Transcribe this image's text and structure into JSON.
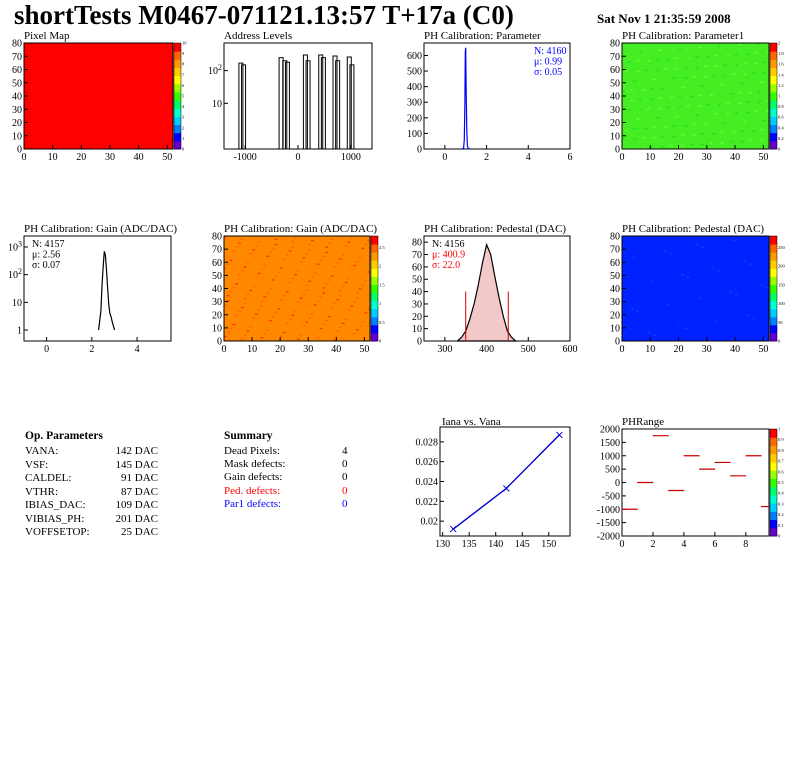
{
  "header": {
    "title": "shortTests M0467-071121.13:57 T+17a (C0)",
    "date": "Sat Nov  1 21:35:59 2008"
  },
  "palette_colors": [
    "#6600cc",
    "#0000ff",
    "#0080ff",
    "#00ccff",
    "#00ffcc",
    "#00ff66",
    "#33ff00",
    "#99ff00",
    "#ffff00",
    "#ffcc00",
    "#ff9900",
    "#ff6600",
    "#ff0000"
  ],
  "chart_data": [
    {
      "id": "pixel-map",
      "type": "heatmap",
      "title": "Pixel Map",
      "xlim": [
        0,
        52
      ],
      "ylim": [
        0,
        80
      ],
      "xticks": [
        "0",
        "10",
        "20",
        "30",
        "40",
        "50"
      ],
      "yticks": [
        "0",
        "10",
        "20",
        "30",
        "40",
        "50",
        "60",
        "70",
        "80"
      ],
      "fill": "#ff0000",
      "zticks": [
        "0",
        "1",
        "2",
        "3",
        "4",
        "5",
        "6",
        "7",
        "8",
        "9",
        "10"
      ],
      "zlim": [
        0,
        10
      ]
    },
    {
      "id": "address-levels",
      "type": "bar",
      "title": "Address Levels",
      "xlim": [
        -1400,
        1400
      ],
      "log_y": true,
      "xticks": [
        "-1000",
        "0",
        "1000"
      ],
      "yticks": [
        "10",
        "10^2"
      ],
      "peaks_x": [
        -1080,
        -1030,
        -320,
        -250,
        -200,
        140,
        190,
        430,
        480,
        700,
        750,
        970,
        1020
      ],
      "peaks_h": [
        170,
        150,
        250,
        200,
        180,
        300,
        200,
        300,
        250,
        280,
        200,
        260,
        150
      ]
    },
    {
      "id": "ph-parameter",
      "type": "line",
      "title": "PH Calibration: Parameter",
      "xlim": [
        -1,
        6
      ],
      "ylim": [
        0,
        680
      ],
      "xticks": [
        "0",
        "2",
        "4",
        "6"
      ],
      "yticks": [
        "0",
        "100",
        "200",
        "300",
        "400",
        "500",
        "600"
      ],
      "stats": [
        "N: 4160",
        "μ: 0.99",
        "σ: 0.05"
      ],
      "curve_x": [
        0.8,
        0.9,
        0.93,
        0.96,
        0.98,
        1.0,
        1.02,
        1.05,
        1.08,
        1.12,
        1.2
      ],
      "curve_y": [
        0,
        5,
        60,
        300,
        620,
        650,
        400,
        120,
        20,
        3,
        0
      ]
    },
    {
      "id": "ph-parameter1",
      "type": "heatmap",
      "title": "PH Calibration: Parameter1",
      "xlim": [
        0,
        52
      ],
      "ylim": [
        0,
        80
      ],
      "xticks": [
        "0",
        "10",
        "20",
        "30",
        "40",
        "50"
      ],
      "yticks": [
        "0",
        "10",
        "20",
        "30",
        "40",
        "50",
        "60",
        "70",
        "80"
      ],
      "fill": "#44ee22",
      "zticks": [
        "0",
        "0.2",
        "0.4",
        "0.6",
        "0.8",
        "1",
        "1.2",
        "1.4",
        "1.6",
        "1.8",
        "2"
      ],
      "zlim": [
        0,
        2
      ]
    },
    {
      "id": "ph-gain",
      "type": "line",
      "title": "PH Calibration: Gain (ADC/DAC)",
      "xlim": [
        -1,
        5.5
      ],
      "log_y": true,
      "xticks": [
        "0",
        "2",
        "4"
      ],
      "yticks": [
        "1",
        "10",
        "10^2",
        "10^3"
      ],
      "stats": [
        "N: 4157",
        "μ: 2.56",
        "σ: 0.07"
      ],
      "curve_x": [
        2.3,
        2.4,
        2.45,
        2.5,
        2.55,
        2.6,
        2.65,
        2.7,
        2.75,
        2.8,
        2.85,
        2.9,
        3.0
      ],
      "curve_y": [
        1,
        5,
        40,
        200,
        700,
        500,
        150,
        30,
        8,
        4,
        3,
        2,
        1
      ]
    },
    {
      "id": "ph-gain-map",
      "type": "heatmap",
      "title": "PH Calibration: Gain (ADC/DAC)",
      "xlim": [
        0,
        52
      ],
      "ylim": [
        0,
        80
      ],
      "xticks": [
        "0",
        "10",
        "20",
        "30",
        "40",
        "50"
      ],
      "yticks": [
        "0",
        "10",
        "20",
        "30",
        "40",
        "50",
        "60",
        "70",
        "80"
      ],
      "fill": "#ff8800",
      "zticks": [
        "0",
        "0.5",
        "1",
        "1.5",
        "2",
        "2.5"
      ],
      "zlim": [
        0,
        2.8
      ]
    },
    {
      "id": "ph-pedestal",
      "type": "bar",
      "title": "PH Calibration: Pedestal (DAC)",
      "xlim": [
        250,
        600
      ],
      "ylim": [
        0,
        85
      ],
      "xticks": [
        "300",
        "400",
        "500",
        "600"
      ],
      "yticks": [
        "0",
        "10",
        "20",
        "30",
        "40",
        "50",
        "60",
        "70",
        "80"
      ],
      "stats": [
        "N: 4156",
        "μ: 400.9",
        "σ: 22.0"
      ],
      "cut_lines": [
        350,
        452
      ],
      "curve_x": [
        330,
        340,
        350,
        360,
        370,
        380,
        390,
        400,
        410,
        420,
        430,
        440,
        450,
        460,
        470
      ],
      "curve_y": [
        0,
        3,
        8,
        18,
        30,
        45,
        63,
        78,
        70,
        52,
        35,
        20,
        8,
        3,
        0
      ]
    },
    {
      "id": "ph-pedestal-map",
      "type": "heatmap",
      "title": "PH Calibration: Pedestal (DAC)",
      "xlim": [
        0,
        52
      ],
      "ylim": [
        0,
        80
      ],
      "xticks": [
        "0",
        "10",
        "20",
        "30",
        "40",
        "50"
      ],
      "yticks": [
        "0",
        "10",
        "20",
        "30",
        "40",
        "50",
        "60",
        "70",
        "80"
      ],
      "fill": "#0022ff",
      "zticks": [
        "0",
        "50",
        "100",
        "150",
        "200",
        "250"
      ],
      "zlim": [
        0,
        280
      ]
    },
    {
      "id": "iana-vana",
      "type": "line",
      "title": "Iana vs. Vana",
      "xlim": [
        129.5,
        154
      ],
      "ylim": [
        0.0185,
        0.0295
      ],
      "xticks": [
        "130",
        "135",
        "140",
        "145",
        "150"
      ],
      "yticks": [
        "0.02",
        "0.022",
        "0.024",
        "0.026",
        "0.028"
      ],
      "x": [
        132,
        142,
        152
      ],
      "y": [
        0.0192,
        0.0233,
        0.0287
      ]
    },
    {
      "id": "ph-range",
      "type": "scatter",
      "title": "PHRange",
      "xlim": [
        0,
        9.5
      ],
      "ylim": [
        -2000,
        2000
      ],
      "xticks": [
        "0",
        "2",
        "4",
        "6",
        "8"
      ],
      "yticks": [
        "-2000",
        "-1500",
        "-1000",
        "-500",
        "0",
        "500",
        "1000",
        "1500",
        "2000"
      ],
      "zticks": [
        "0",
        "0.1",
        "0.2",
        "0.3",
        "0.4",
        "0.5",
        "0.6",
        "0.7",
        "0.8",
        "0.9",
        "1"
      ],
      "zlim": [
        0,
        1
      ],
      "x": [
        0.5,
        1.5,
        2.5,
        3.5,
        4.5,
        5.5,
        6.5,
        7.5,
        8.5,
        9.5
      ],
      "y": [
        -1000,
        0,
        1750,
        -300,
        1000,
        500,
        750,
        250,
        1000,
        -900
      ]
    }
  ],
  "op_parameters": {
    "title": "Op. Parameters",
    "rows": [
      {
        "name": "VANA:",
        "value": "142 DAC"
      },
      {
        "name": "VSF:",
        "value": "145 DAC"
      },
      {
        "name": "CALDEL:",
        "value": "91 DAC"
      },
      {
        "name": "VTHR:",
        "value": "87 DAC"
      },
      {
        "name": "IBIAS_DAC:",
        "value": "109 DAC"
      },
      {
        "name": "VIBIAS_PH:",
        "value": "201 DAC"
      },
      {
        "name": "VOFFSETOP:",
        "value": "25 DAC"
      }
    ]
  },
  "summary": {
    "title": "Summary",
    "rows": [
      {
        "name": "Dead Pixels:",
        "value": "4",
        "color": "#000000"
      },
      {
        "name": "Mask defects:",
        "value": "0",
        "color": "#000000"
      },
      {
        "name": "Gain defects:",
        "value": "0",
        "color": "#000000"
      },
      {
        "name": "Ped. defects:",
        "value": "0",
        "color": "#ff0000"
      },
      {
        "name": "Par1 defects:",
        "value": "0",
        "color": "#0000ff"
      }
    ]
  }
}
